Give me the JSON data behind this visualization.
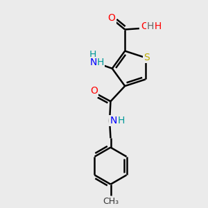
{
  "background_color": "#ebebeb",
  "atom_colors": {
    "C": "#000000",
    "N": "#0000ff",
    "O": "#ff0000",
    "S": "#bbaa00"
  },
  "bond_color": "#000000",
  "bond_width": 1.8,
  "figsize": [
    3.0,
    3.0
  ],
  "dpi": 100,
  "xlim": [
    0,
    10
  ],
  "ylim": [
    0,
    10
  ]
}
